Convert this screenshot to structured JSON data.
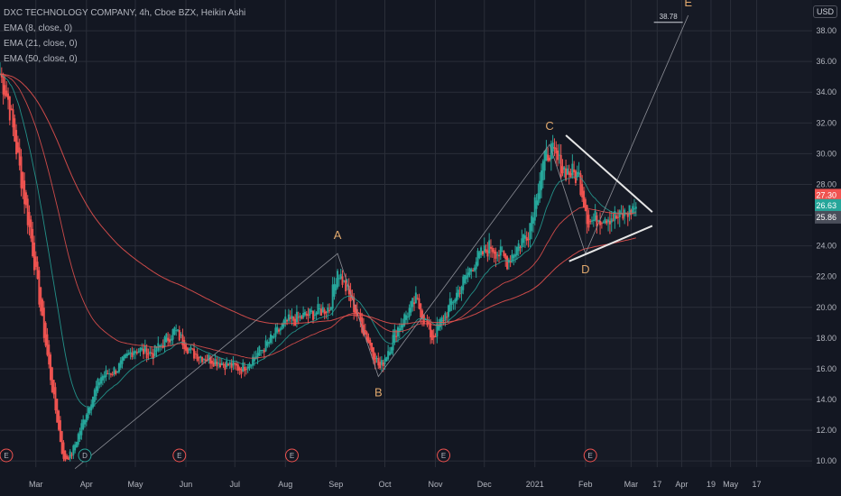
{
  "header": {
    "title": "DXC TECHNOLOGY COMPANY, 4h, Cboe BZX, Heikin Ashi",
    "indicators": [
      "EMA (8, close, 0)",
      "EMA (21, close, 0)",
      "EMA (50, close, 0)"
    ],
    "currency": "USD"
  },
  "colors": {
    "background": "#131722",
    "grid": "#2a2e39",
    "up": "#26a69a",
    "down": "#ef5350",
    "ema8": "#26a69a",
    "ema21": "#ef5350",
    "ema50": "#ef5350",
    "wave": "#8d8f97",
    "wave_label": "#e0a86d",
    "trendline": "#e6e6e6"
  },
  "chart_data": {
    "type": "candlestick",
    "title": "DXC TECHNOLOGY COMPANY, 4h, Cboe BZX, Heikin Ashi",
    "y_axis": {
      "side": "right",
      "range": [
        9.6,
        40
      ],
      "ticks": [
        "10.00",
        "12.00",
        "14.00",
        "16.00",
        "18.00",
        "20.00",
        "22.00",
        "24.00",
        "26.00",
        "28.00",
        "30.00",
        "32.00",
        "34.00",
        "36.00",
        "38.00"
      ]
    },
    "x_axis": {
      "tick_labels": [
        "Mar",
        "Apr",
        "May",
        "Jun",
        "Jul",
        "Aug",
        "Sep",
        "Oct",
        "Nov",
        "Dec",
        "2021",
        "Feb",
        "Mar",
        "17",
        "Apr",
        "19",
        "May",
        "17"
      ],
      "range": [
        "2020-02-08",
        "2021-06-20"
      ]
    },
    "price_labels": [
      {
        "value": 27.3,
        "text": "27.30",
        "color": "#ef5350"
      },
      {
        "value": 26.63,
        "text": "26.63",
        "color": "#26a69a"
      },
      {
        "value": 25.86,
        "text": "25.86",
        "color": "#4a4e5a"
      }
    ],
    "close_path": [
      {
        "date": "2020-02-08",
        "value": 35.2
      },
      {
        "date": "2020-02-13",
        "value": 33.5
      },
      {
        "date": "2020-02-20",
        "value": 29.0
      },
      {
        "date": "2020-02-27",
        "value": 24.5
      },
      {
        "date": "2020-03-05",
        "value": 19.0
      },
      {
        "date": "2020-03-12",
        "value": 14.0
      },
      {
        "date": "2020-03-18",
        "value": 10.0
      },
      {
        "date": "2020-03-23",
        "value": 10.5
      },
      {
        "date": "2020-04-02",
        "value": 13.5
      },
      {
        "date": "2020-04-10",
        "value": 15.5
      },
      {
        "date": "2020-04-20",
        "value": 16.0
      },
      {
        "date": "2020-04-30",
        "value": 17.3
      },
      {
        "date": "2020-05-12",
        "value": 17.0
      },
      {
        "date": "2020-05-25",
        "value": 18.5
      },
      {
        "date": "2020-06-05",
        "value": 17.0
      },
      {
        "date": "2020-06-20",
        "value": 16.5
      },
      {
        "date": "2020-07-05",
        "value": 16.0
      },
      {
        "date": "2020-07-20",
        "value": 17.5
      },
      {
        "date": "2020-08-01",
        "value": 19.0
      },
      {
        "date": "2020-08-15",
        "value": 19.5
      },
      {
        "date": "2020-08-28",
        "value": 20.0
      },
      {
        "date": "2020-09-02",
        "value": 22.5
      },
      {
        "date": "2020-09-12",
        "value": 20.0
      },
      {
        "date": "2020-09-28",
        "value": 16.0
      },
      {
        "date": "2020-10-08",
        "value": 18.5
      },
      {
        "date": "2020-10-20",
        "value": 20.5
      },
      {
        "date": "2020-10-30",
        "value": 18.0
      },
      {
        "date": "2020-11-12",
        "value": 20.5
      },
      {
        "date": "2020-11-25",
        "value": 23.0
      },
      {
        "date": "2020-12-05",
        "value": 24.0
      },
      {
        "date": "2020-12-15",
        "value": 23.0
      },
      {
        "date": "2020-12-28",
        "value": 25.0
      },
      {
        "date": "2021-01-05",
        "value": 29.0
      },
      {
        "date": "2021-01-10",
        "value": 30.3
      },
      {
        "date": "2021-01-18",
        "value": 29.0
      },
      {
        "date": "2021-01-28",
        "value": 28.5
      },
      {
        "date": "2021-02-03",
        "value": 25.5
      },
      {
        "date": "2021-02-12",
        "value": 26.0
      },
      {
        "date": "2021-02-22",
        "value": 25.8
      },
      {
        "date": "2021-03-04",
        "value": 26.6
      }
    ],
    "elliott_wave": {
      "points": [
        {
          "label": "",
          "date": "2020-03-25",
          "value": 9.5
        },
        {
          "label": "A",
          "date": "2020-09-02",
          "value": 23.5
        },
        {
          "label": "B",
          "date": "2020-09-27",
          "value": 15.5
        },
        {
          "label": "C",
          "date": "2021-01-10",
          "value": 30.6
        },
        {
          "label": "D",
          "date": "2021-02-01",
          "value": 23.5
        },
        {
          "label": "E",
          "date": "2021-04-05",
          "value": 39.0
        }
      ],
      "target_label": "38.78"
    },
    "triangle": {
      "upper": [
        {
          "date": "2021-01-20",
          "value": 31.2
        },
        {
          "date": "2021-03-14",
          "value": 26.2
        }
      ],
      "lower": [
        {
          "date": "2021-01-22",
          "value": 23.0
        },
        {
          "date": "2021-03-14",
          "value": 25.3
        }
      ]
    },
    "earnings_markers": [
      {
        "date": "2020-02-08",
        "label": "E",
        "color": "#ef5350"
      },
      {
        "date": "2020-03-31",
        "label": "D",
        "color": "#26a69a"
      },
      {
        "date": "2020-05-28",
        "label": "E",
        "color": "#ef5350"
      },
      {
        "date": "2020-08-05",
        "label": "E",
        "color": "#ef5350"
      },
      {
        "date": "2020-11-06",
        "label": "E",
        "color": "#ef5350"
      },
      {
        "date": "2021-02-04",
        "label": "E",
        "color": "#ef5350"
      }
    ],
    "series": [
      {
        "name": "EMA (8, close, 0)"
      },
      {
        "name": "EMA (21, close, 0)"
      },
      {
        "name": "EMA (50, close, 0)"
      }
    ]
  }
}
